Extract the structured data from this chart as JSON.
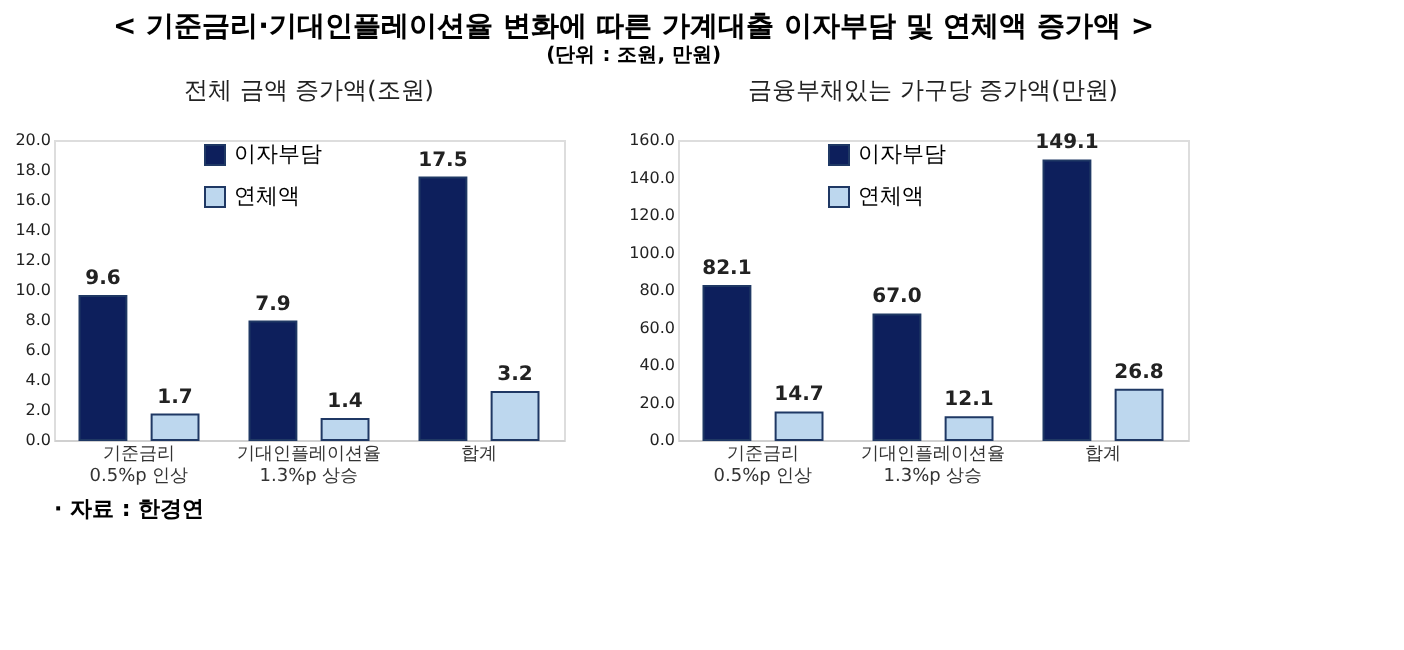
{
  "chart_data": [
    {
      "type": "bar",
      "title": "전체 금액 증가액(조원)",
      "categories": [
        "기준금리 0.5%p 인상",
        "기대인플레이션율 1.3%p 상승",
        "합계"
      ],
      "series": [
        {
          "name": "이자부담",
          "color": "#0d1f5c",
          "values": [
            9.6,
            7.9,
            17.5
          ],
          "value_labels": [
            "9.6",
            "7.9",
            "17.5"
          ]
        },
        {
          "name": "연체액",
          "color": "#bdd7ee",
          "values": [
            1.7,
            1.4,
            3.2
          ],
          "value_labels": [
            "1.7",
            "1.4",
            "3.2"
          ]
        }
      ],
      "ylim": [
        0,
        20
      ],
      "yticks": [
        {
          "value": 0,
          "label": "0.0"
        },
        {
          "value": 2,
          "label": "2.0"
        },
        {
          "value": 4,
          "label": "4.0"
        },
        {
          "value": 6,
          "label": "6.0"
        },
        {
          "value": 8,
          "label": "8.0"
        },
        {
          "value": 10,
          "label": "10.0"
        },
        {
          "value": 12,
          "label": "12.0"
        },
        {
          "value": 14,
          "label": "14.0"
        },
        {
          "value": 16,
          "label": "16.0"
        },
        {
          "value": 18,
          "label": "18.0"
        },
        {
          "value": 20,
          "label": "20.0"
        }
      ],
      "grid": false,
      "legend": "top",
      "annotations": [
        "< 기준금리·기대인플레이션율 변화에 따른 가계대출 이자부담 및 연체액 증가액 >",
        "(단위 : 조원, 만원)",
        "· 자료 : 한경연"
      ]
    },
    {
      "type": "bar",
      "title": "금융부채있는 가구당 증가액(만원)",
      "categories": [
        "기준금리 0.5%p 인상",
        "기대인플레이션율 1.3%p 상승",
        "합계"
      ],
      "series": [
        {
          "name": "이자부담",
          "color": "#0d1f5c",
          "values": [
            82.1,
            67.0,
            149.1
          ],
          "value_labels": [
            "82.1",
            "67.0",
            "149.1"
          ]
        },
        {
          "name": "연체액",
          "color": "#bdd7ee",
          "values": [
            14.7,
            12.1,
            26.8
          ],
          "value_labels": [
            "14.7",
            "12.1",
            "26.8"
          ]
        }
      ],
      "ylim": [
        0,
        160
      ],
      "yticks": [
        {
          "value": 0,
          "label": "0.0"
        },
        {
          "value": 20,
          "label": "20.0"
        },
        {
          "value": 40,
          "label": "40.0"
        },
        {
          "value": 60,
          "label": "60.0"
        },
        {
          "value": 80,
          "label": "80.0"
        },
        {
          "value": 100,
          "label": "100.0"
        },
        {
          "value": 120,
          "label": "120.0"
        },
        {
          "value": 140,
          "label": "140.0"
        },
        {
          "value": 160,
          "label": "160.0"
        }
      ],
      "grid": false,
      "legend": "top"
    }
  ]
}
